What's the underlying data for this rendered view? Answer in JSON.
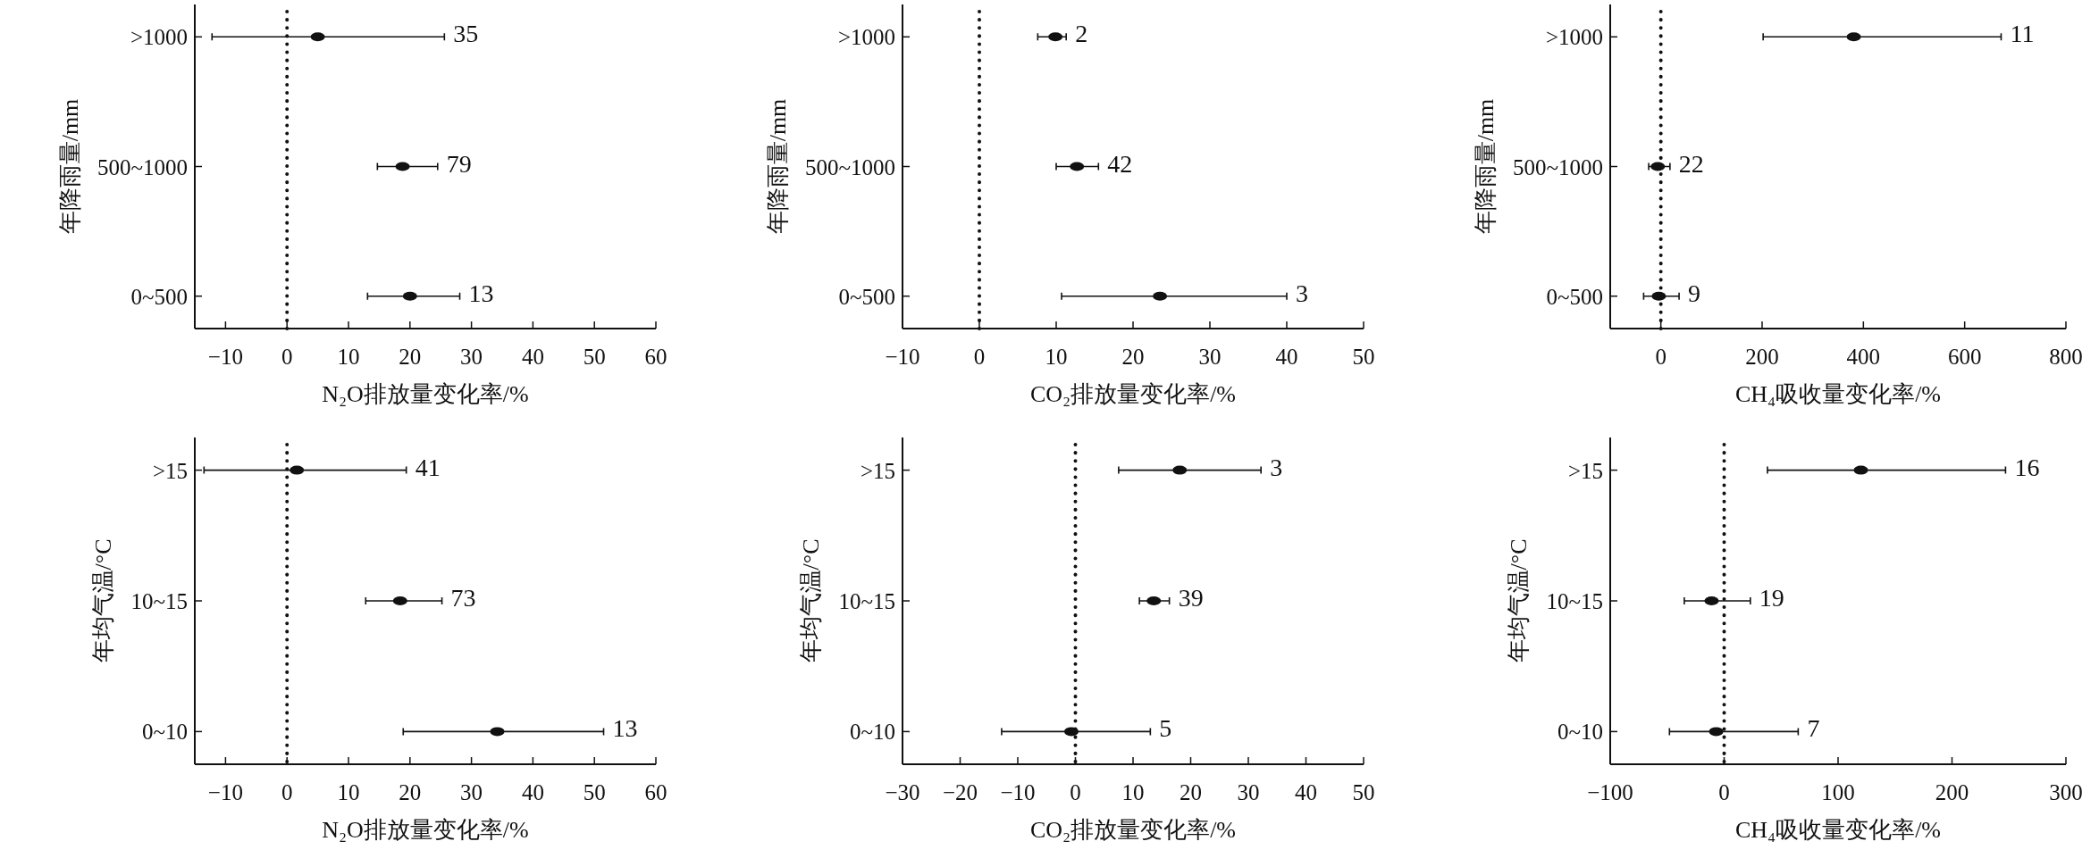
{
  "chart_data": [
    {
      "type": "scatter",
      "orientation": "horizontal",
      "marker": "circle",
      "categories": [
        ">1000",
        "500~1000",
        "0~500"
      ],
      "values": [
        5.0,
        18.8,
        20.0
      ],
      "errors": [
        [
          -12.2,
          25.6
        ],
        [
          14.7,
          24.5
        ],
        [
          13.1,
          28.1
        ]
      ],
      "color": "#111111",
      "xlim": [
        -15,
        60
      ],
      "xticks": [
        -10,
        0,
        10,
        20,
        30,
        40,
        50,
        60
      ],
      "xlabel": "N₂O排放量变化率/%",
      "ylabel": "年降雨量/mm",
      "ref_lines": [
        {
          "axis": "x",
          "value": 0,
          "line_style": "dotted",
          "color": "#111111"
        }
      ],
      "annotations": [
        "35",
        "79",
        "13"
      ]
    },
    {
      "type": "scatter",
      "orientation": "horizontal",
      "marker": "circle",
      "categories": [
        ">1000",
        "500~1000",
        "0~500"
      ],
      "values": [
        9.9,
        12.7,
        23.5
      ],
      "errors": [
        [
          7.6,
          11.3
        ],
        [
          10.0,
          15.5
        ],
        [
          10.7,
          40.0
        ]
      ],
      "color": "#111111",
      "xlim": [
        -10,
        50
      ],
      "xticks": [
        -10,
        0,
        10,
        20,
        30,
        40,
        50
      ],
      "xlabel": "CO₂排放量变化率/%",
      "ylabel": "年降雨量/mm",
      "ref_lines": [
        {
          "axis": "x",
          "value": 0,
          "line_style": "dotted",
          "color": "#111111"
        }
      ],
      "annotations": [
        "2",
        "42",
        "3"
      ]
    },
    {
      "type": "scatter",
      "orientation": "horizontal",
      "marker": "circle",
      "categories": [
        ">1000",
        "500~1000",
        "0~500"
      ],
      "values": [
        381,
        -6,
        -4
      ],
      "errors": [
        [
          202,
          672
        ],
        [
          -24,
          18
        ],
        [
          -34,
          36
        ]
      ],
      "color": "#111111",
      "xlim": [
        -100,
        800
      ],
      "xticks": [
        0,
        200,
        400,
        600,
        800
      ],
      "xlabel": "CH₄吸收量变化率/%",
      "ylabel": "年降雨量/mm",
      "ref_lines": [
        {
          "axis": "x",
          "value": 0,
          "line_style": "dotted",
          "color": "#111111"
        }
      ],
      "annotations": [
        "11",
        "22",
        "9"
      ]
    },
    {
      "type": "scatter",
      "orientation": "horizontal",
      "marker": "circle",
      "categories": [
        ">15",
        "10~15",
        "0~10"
      ],
      "values": [
        1.6,
        18.4,
        34.2
      ],
      "errors": [
        [
          -13.5,
          19.4
        ],
        [
          12.8,
          25.2
        ],
        [
          18.9,
          51.5
        ]
      ],
      "color": "#111111",
      "xlim": [
        -15,
        60
      ],
      "xticks": [
        -10,
        0,
        10,
        20,
        30,
        40,
        50,
        60
      ],
      "xlabel": "N₂O排放量变化率/%",
      "ylabel": "年均气温/°C",
      "ref_lines": [
        {
          "axis": "x",
          "value": 0,
          "line_style": "dotted",
          "color": "#111111"
        }
      ],
      "annotations": [
        "41",
        "73",
        "13"
      ]
    },
    {
      "type": "scatter",
      "orientation": "horizontal",
      "marker": "circle",
      "categories": [
        ">15",
        "10~15",
        "0~10"
      ],
      "values": [
        18.1,
        13.6,
        -0.7
      ],
      "errors": [
        [
          7.5,
          32.2
        ],
        [
          11.1,
          16.3
        ],
        [
          -12.8,
          13.0
        ]
      ],
      "color": "#111111",
      "xlim": [
        -30,
        50
      ],
      "xticks": [
        -30,
        -20,
        -10,
        0,
        10,
        20,
        30,
        40,
        50
      ],
      "xlabel": "CO₂排放量变化率/%",
      "ylabel": "年均气温/°C",
      "ref_lines": [
        {
          "axis": "x",
          "value": 0,
          "line_style": "dotted",
          "color": "#111111"
        }
      ],
      "annotations": [
        "3",
        "39",
        "5"
      ]
    },
    {
      "type": "scatter",
      "orientation": "horizontal",
      "marker": "circle",
      "categories": [
        ">15",
        "10~15",
        "0~10"
      ],
      "values": [
        120,
        -11,
        -7
      ],
      "errors": [
        [
          38,
          247
        ],
        [
          -35,
          23
        ],
        [
          -48,
          65
        ]
      ],
      "color": "#111111",
      "xlim": [
        -100,
        300
      ],
      "xticks": [
        -100,
        0,
        100,
        200,
        300
      ],
      "xlabel": "CH₄吸收量变化率/%",
      "ylabel": "年均气温/°C",
      "ref_lines": [
        {
          "axis": "x",
          "value": 0,
          "line_style": "dotted",
          "color": "#111111"
        }
      ],
      "annotations": [
        "16",
        "19",
        "7"
      ]
    }
  ]
}
